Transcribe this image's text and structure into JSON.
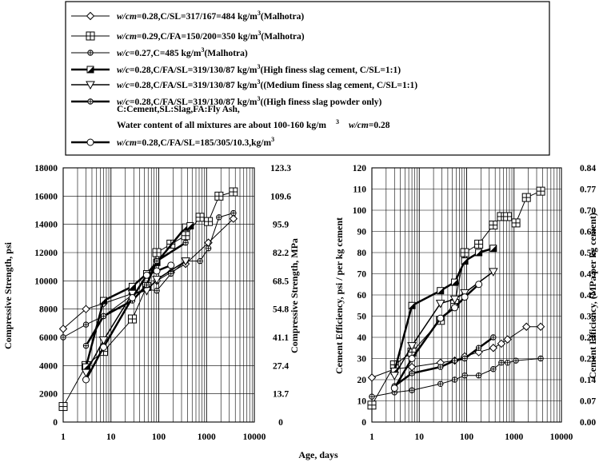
{
  "legend": {
    "entries": [
      {
        "marker": "diamond",
        "line_width": 1,
        "prefix": "w/cm",
        "text": "=0.28,C/SL=317/167=484 kg/m",
        "sup": "3",
        "suffix": "(Malhotra)"
      },
      {
        "marker": "square_cross",
        "line_width": 1,
        "prefix": "w/cm",
        "text": "=0.29,C/FA=150/200=350 kg/m",
        "sup": "3",
        "suffix": "(Malhotra)"
      },
      {
        "marker": "circle_cross",
        "line_width": 1,
        "prefix": "w/c",
        "text": "=0.27,C=485 kg/m",
        "sup": "3",
        "suffix": "(Malhotra)"
      },
      {
        "marker": "half_square",
        "line_width": 2.5,
        "prefix": "w/c",
        "text": "=0.28,C/FA/SL=319/130/87 kg/m",
        "sup": "3",
        "suffix": "(High finess slag cement, C/SL=1:1)"
      },
      {
        "marker": "triangle_down",
        "line_width": 1.5,
        "prefix": "w/c",
        "text": "=0.28,C/FA/SL=319/130/87 kg/m",
        "sup": "3",
        "suffix": "((Medium finess slag cement,  C/SL=1:1)"
      },
      {
        "marker": "circle_cross",
        "line_width": 2.5,
        "prefix": "w/c",
        "text": "=0.28,C/FA/SL=319/130/87 kg/m",
        "sup": "3",
        "suffix": "((High finess slag powder only)"
      },
      {
        "marker": "circle",
        "line_width": 2.5,
        "prefix": "w/cm",
        "text": "=0.28,C/FA/SL=185/305/10.3,kg/m",
        "sup": "3",
        "suffix": ""
      }
    ],
    "notes": [
      "C:Cement,SL:Slag,FA:Fly Ash,",
      "Water content of all mixtures are about 100-160 kg/m",
      "3",
      "w/cm",
      "=0.28"
    ]
  },
  "chart_data": [
    {
      "type": "line",
      "xlabel": "Age, days",
      "ylabel": "Compressive Strength, psi",
      "y2label": "Compressive Strength, MPa",
      "x_scale": "log",
      "xlim": [
        1,
        10000
      ],
      "ylim": [
        0,
        18000
      ],
      "x_ticks": [
        "1",
        "10",
        "100",
        "1000",
        "10000"
      ],
      "y_ticks": [
        "0",
        "2000",
        "4000",
        "6000",
        "8000",
        "10000",
        "12000",
        "14000",
        "16000",
        "18000"
      ],
      "y2_ticks": [
        "0",
        "13.7",
        "27.4",
        "41.1",
        "54.8",
        "68.5",
        "82.2",
        "95.9",
        "109.6",
        "123.3"
      ],
      "grid": true,
      "series": [
        {
          "marker": "diamond",
          "line_width": 1,
          "x": [
            1,
            3,
            7,
            28,
            56,
            91,
            180,
            365,
            1095,
            3650
          ],
          "y": [
            6600,
            8000,
            8400,
            9100,
            9400,
            10000,
            10600,
            11200,
            12700,
            14400
          ]
        },
        {
          "marker": "square_cross",
          "line_width": 1,
          "x": [
            1,
            3,
            7,
            28,
            56,
            91,
            180,
            365,
            730,
            1095,
            1825,
            3650
          ],
          "y": [
            1100,
            4000,
            5000,
            7300,
            9600,
            12000,
            12600,
            13200,
            14500,
            14200,
            16000,
            16300
          ]
        },
        {
          "marker": "circle_cross",
          "line_width": 1,
          "x": [
            1,
            3,
            7,
            28,
            56,
            91,
            180,
            365,
            730,
            1095,
            1825,
            3650
          ],
          "y": [
            6000,
            6900,
            7500,
            9000,
            9400,
            9300,
            10500,
            11400,
            11400,
            12300,
            14500,
            14800
          ]
        },
        {
          "marker": "half_square",
          "line_width": 2.5,
          "x": [
            3,
            7,
            28,
            56,
            91,
            365,
            455
          ],
          "y": [
            3900,
            8600,
            9600,
            10500,
            11300,
            13800,
            13900
          ]
        },
        {
          "marker": "triangle_down",
          "line_width": 1.5,
          "x": [
            3,
            7,
            28,
            56,
            91,
            365
          ],
          "y": [
            3500,
            5800,
            9100,
            9300,
            10100,
            11400
          ]
        },
        {
          "marker": "circle_cross",
          "line_width": 2.5,
          "x": [
            3,
            7,
            28,
            56,
            91,
            365
          ],
          "y": [
            5400,
            7500,
            8600,
            9700,
            11400,
            12700
          ]
        },
        {
          "marker": "circle",
          "line_width": 2.5,
          "x": [
            3,
            7,
            28,
            56,
            91,
            180
          ],
          "y": [
            3000,
            5300,
            8800,
            10400,
            10700,
            11100
          ]
        }
      ]
    },
    {
      "type": "line",
      "xlabel": "Age, days",
      "ylabel": "Cement Efficiency, psi / per kg cement",
      "y2label": "Cement Efficiency, (MPa  per  kg cement)",
      "x_scale": "log",
      "xlim": [
        1,
        10000
      ],
      "ylim": [
        0,
        120
      ],
      "x_ticks": [
        "1",
        "10",
        "100",
        "1000",
        "10000"
      ],
      "y_ticks": [
        "0",
        "10",
        "20",
        "30",
        "40",
        "50",
        "60",
        "70",
        "80",
        "90",
        "100",
        "110",
        "120"
      ],
      "y2_ticks": [
        "0.00",
        "0.07",
        "0.14",
        "0.21",
        "0.28",
        "0.35",
        "0.42",
        "0.49",
        "0.56",
        "0.63",
        "0.70",
        "0.77",
        "0.84"
      ],
      "grid": true,
      "series": [
        {
          "marker": "diamond",
          "line_width": 1,
          "x": [
            1,
            3,
            7,
            28,
            56,
            91,
            180,
            365,
            540,
            730,
            1825,
            3650
          ],
          "y": [
            21,
            25,
            26,
            28,
            29,
            31,
            33,
            35,
            37,
            39,
            45,
            45
          ]
        },
        {
          "marker": "square_cross",
          "line_width": 1,
          "x": [
            1,
            3,
            7,
            28,
            56,
            91,
            180,
            365,
            540,
            730,
            1095,
            1825,
            3650
          ],
          "y": [
            8,
            27,
            33,
            48,
            56,
            80,
            84,
            93,
            97,
            97,
            94,
            106,
            109
          ]
        },
        {
          "marker": "circle_cross",
          "line_width": 1,
          "x": [
            1,
            3,
            7,
            28,
            56,
            91,
            180,
            365,
            540,
            730,
            1095,
            3650
          ],
          "y": [
            12,
            14,
            15,
            18,
            20,
            22,
            22,
            25,
            28,
            28,
            29,
            30
          ]
        },
        {
          "marker": "half_square",
          "line_width": 2.5,
          "x": [
            3,
            7,
            28,
            56,
            91,
            180,
            365
          ],
          "y": [
            24,
            55,
            62,
            66,
            76,
            80,
            82
          ]
        },
        {
          "marker": "triangle_down",
          "line_width": 1.5,
          "x": [
            3,
            7,
            28,
            56,
            91,
            365
          ],
          "y": [
            22,
            36,
            56,
            58,
            61,
            71
          ]
        },
        {
          "marker": "circle_cross",
          "line_width": 2.5,
          "x": [
            3,
            7,
            28,
            56,
            91,
            180,
            365
          ],
          "y": [
            17,
            23,
            26,
            29,
            30,
            35,
            40
          ]
        },
        {
          "marker": "circle",
          "line_width": 2.5,
          "x": [
            3,
            7,
            28,
            56,
            91,
            180
          ],
          "y": [
            16,
            30,
            49,
            54,
            59,
            65
          ]
        }
      ]
    }
  ]
}
